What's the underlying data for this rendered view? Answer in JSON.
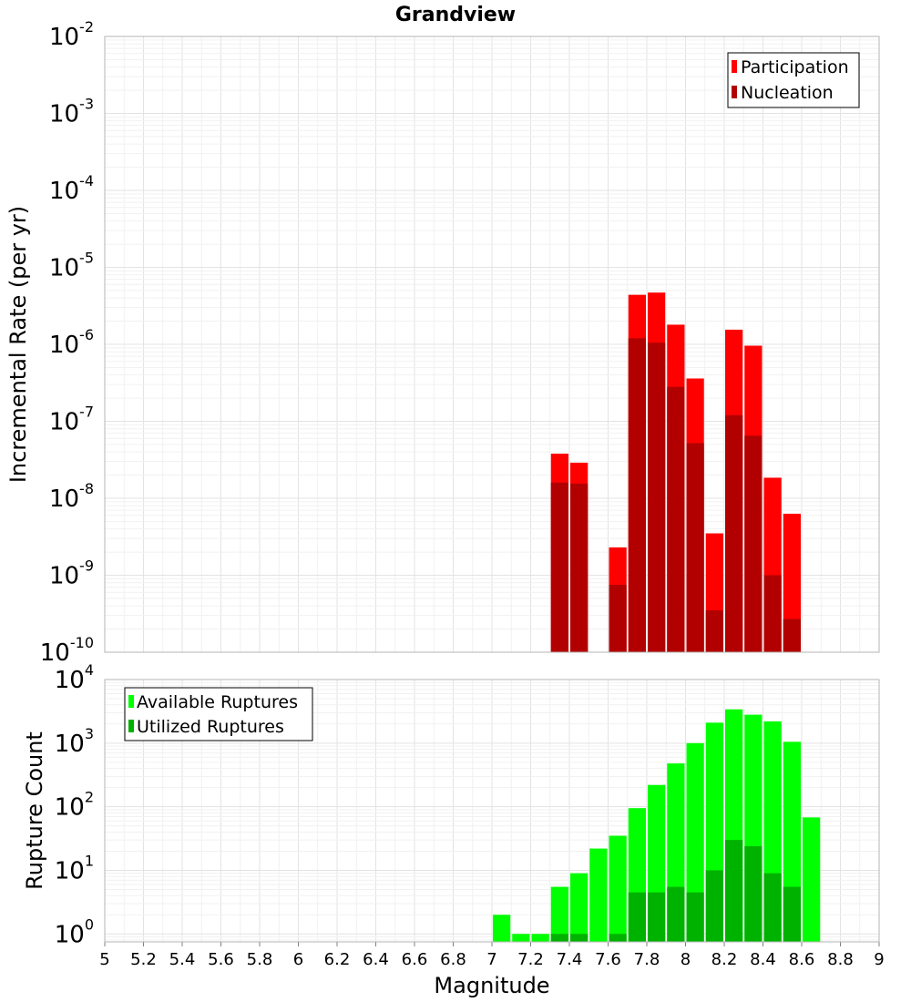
{
  "title": "Grandview",
  "chart_data": [
    {
      "type": "bar",
      "ylabel": "Incremental Rate (per yr)",
      "xlabel": "",
      "xlim": [
        5,
        9
      ],
      "ylim": [
        1e-10,
        0.01
      ],
      "y_scale": "log",
      "grid": true,
      "legend_position": "top-right",
      "bin_width": 0.1,
      "y_ticks": [
        {
          "base": "10",
          "exp": "-10"
        },
        {
          "base": "10",
          "exp": "-9"
        },
        {
          "base": "10",
          "exp": "-8"
        },
        {
          "base": "10",
          "exp": "-7"
        },
        {
          "base": "10",
          "exp": "-6"
        },
        {
          "base": "10",
          "exp": "-5"
        },
        {
          "base": "10",
          "exp": "-4"
        },
        {
          "base": "10",
          "exp": "-3"
        },
        {
          "base": "10",
          "exp": "-2"
        }
      ],
      "series": [
        {
          "name": "Participation",
          "color": "#ff0000",
          "x": [
            7.35,
            7.45,
            7.65,
            7.75,
            7.85,
            7.95,
            8.05,
            8.15,
            8.25,
            8.35,
            8.45,
            8.55
          ],
          "values": [
            3.8e-08,
            2.9e-08,
            2.3e-09,
            4.4e-06,
            4.7e-06,
            1.8e-06,
            3.6e-07,
            3.5e-09,
            1.55e-06,
            9.6e-07,
            1.85e-08,
            6.3e-09
          ]
        },
        {
          "name": "Nucleation",
          "color": "#b20000",
          "x": [
            7.35,
            7.45,
            7.65,
            7.75,
            7.85,
            7.95,
            8.05,
            8.15,
            8.25,
            8.35,
            8.45,
            8.55
          ],
          "values": [
            1.6e-08,
            1.55e-08,
            7.5e-10,
            1.2e-06,
            1.05e-06,
            2.8e-07,
            5.2e-08,
            3.5e-10,
            1.2e-07,
            6.5e-08,
            1e-09,
            2.7e-10
          ]
        }
      ]
    },
    {
      "type": "bar",
      "ylabel": "Rupture Count",
      "xlabel": "Magnitude",
      "xlim": [
        5,
        9
      ],
      "ylim": [
        0.75,
        10000
      ],
      "y_scale": "log",
      "grid": true,
      "legend_position": "top-left",
      "bin_width": 0.1,
      "x_tick_labels": [
        "5",
        "5.2",
        "5.4",
        "5.6",
        "5.8",
        "6",
        "6.2",
        "6.4",
        "6.6",
        "6.8",
        "7",
        "7.2",
        "7.4",
        "7.6",
        "7.8",
        "8",
        "8.2",
        "8.4",
        "8.6",
        "8.8",
        "9"
      ],
      "y_ticks": [
        {
          "base": "10",
          "exp": "0"
        },
        {
          "base": "10",
          "exp": "1"
        },
        {
          "base": "10",
          "exp": "2"
        },
        {
          "base": "10",
          "exp": "3"
        },
        {
          "base": "10",
          "exp": "4"
        }
      ],
      "series": [
        {
          "name": "Available Ruptures",
          "color": "#00ff00",
          "x": [
            7.05,
            7.15,
            7.25,
            7.35,
            7.45,
            7.55,
            7.65,
            7.75,
            7.85,
            7.95,
            8.05,
            8.15,
            8.25,
            8.35,
            8.45,
            8.55,
            8.65
          ],
          "values": [
            2,
            1,
            1,
            5.5,
            9,
            22,
            35,
            95,
            220,
            480,
            1000,
            2100,
            3400,
            2800,
            2200,
            1050,
            68
          ]
        },
        {
          "name": "Utilized Ruptures",
          "color": "#00b200",
          "x": [
            7.35,
            7.45,
            7.65,
            7.75,
            7.85,
            7.95,
            8.05,
            8.15,
            8.25,
            8.35,
            8.45,
            8.55
          ],
          "values": [
            1,
            1,
            1,
            4.5,
            4.5,
            5.5,
            4.5,
            10,
            30,
            24,
            9,
            5.5
          ]
        }
      ]
    }
  ]
}
